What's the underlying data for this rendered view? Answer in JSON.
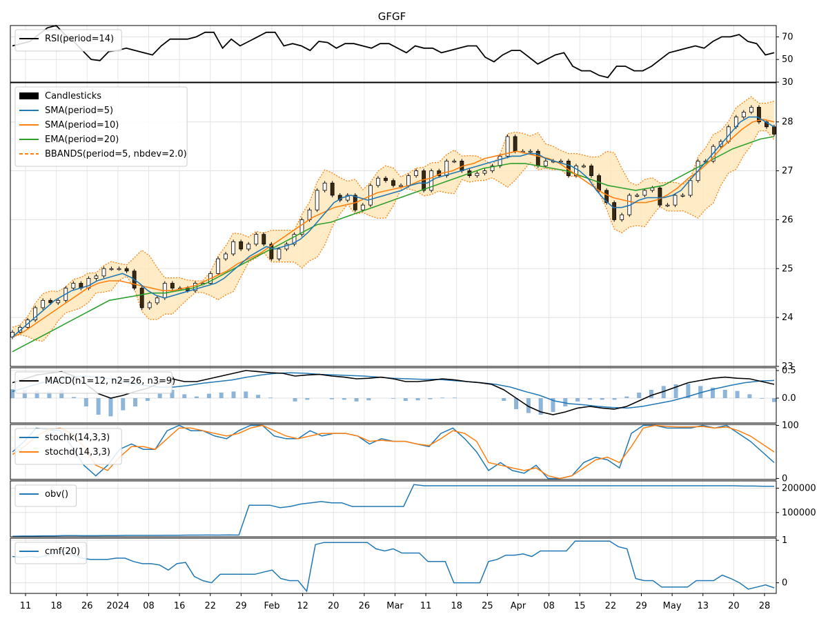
{
  "title": "GFGF",
  "x_ticks": [
    "11",
    "18",
    "26",
    "2024",
    "08",
    "16",
    "22",
    "29",
    "Feb",
    "12",
    "20",
    "26",
    "Mar",
    "11",
    "18",
    "25",
    "Apr",
    "08",
    "15",
    "22",
    "29",
    "May",
    "13",
    "20",
    "28"
  ],
  "panels": {
    "rsi": {
      "legend": [
        "RSI(period=14)"
      ],
      "y_ticks": [
        "30",
        "50",
        "70"
      ],
      "ylim": [
        30,
        80
      ]
    },
    "price": {
      "legend": [
        "Candlesticks",
        "SMA(period=5)",
        "SMA(period=10)",
        "EMA(period=20)",
        "BBANDS(period=5, nbdev=2.0)"
      ],
      "y_ticks": [
        "23",
        "24",
        "25",
        "26",
        "27",
        "28"
      ],
      "ylim": [
        23.0,
        28.8
      ]
    },
    "macd": {
      "legend": [
        "MACD(n1=12, n2=26, n3=9)"
      ],
      "y_ticks": [
        "0.0",
        "0.5"
      ],
      "ylim": [
        -0.45,
        0.55
      ]
    },
    "stoch": {
      "legend": [
        "stochk(14,3,3)",
        "stochd(14,3,3)"
      ],
      "y_ticks": [
        "0",
        "100"
      ],
      "ylim": [
        -2,
        102
      ]
    },
    "obv": {
      "legend": [
        "obv()"
      ],
      "y_ticks": [
        "100000",
        "200000"
      ],
      "ylim": [
        0,
        230000
      ]
    },
    "cmf": {
      "legend": [
        "cmf(20)"
      ],
      "y_ticks": [
        "0",
        "1"
      ],
      "ylim": [
        -0.25,
        1.05
      ]
    }
  },
  "colors": {
    "blue": "#1f77b4",
    "orange": "#ff7f0e",
    "green": "#2ca02c",
    "black": "#000000",
    "band": "#ffe7b8",
    "bull": "#2ca02c",
    "bear": "#d62728"
  },
  "chart_data": {
    "type": "line",
    "title": "GFGF",
    "x_range": [
      "2024-01-08",
      "2024-05-31"
    ],
    "trading_days": 101,
    "close": [
      23.7,
      23.8,
      23.95,
      24.2,
      24.35,
      24.3,
      24.35,
      24.6,
      24.7,
      24.6,
      24.8,
      24.85,
      25.0,
      25.0,
      25.0,
      24.95,
      24.6,
      24.2,
      24.3,
      24.4,
      24.7,
      24.6,
      24.6,
      24.55,
      24.7,
      24.7,
      24.9,
      25.2,
      25.3,
      25.55,
      25.4,
      25.5,
      25.7,
      25.5,
      25.2,
      25.4,
      25.5,
      25.7,
      26.0,
      26.2,
      26.6,
      26.75,
      26.5,
      26.4,
      26.5,
      26.2,
      26.3,
      26.7,
      26.85,
      26.8,
      26.7,
      26.7,
      26.9,
      27.0,
      26.6,
      27.0,
      26.9,
      27.2,
      27.2,
      27.0,
      26.9,
      26.95,
      27.0,
      27.1,
      27.3,
      27.7,
      27.4,
      27.4,
      27.4,
      27.1,
      27.2,
      27.2,
      27.2,
      26.9,
      27.1,
      27.1,
      26.9,
      26.6,
      26.35,
      26.0,
      26.1,
      26.5,
      26.5,
      26.6,
      26.65,
      26.3,
      26.3,
      26.5,
      26.5,
      26.8,
      27.2,
      27.2,
      27.5,
      27.6,
      27.9,
      28.1,
      28.2,
      28.3,
      28.0,
      27.9,
      27.75
    ],
    "rsi": [
      62,
      64,
      66,
      72,
      78,
      80,
      72,
      66,
      58,
      50,
      49,
      57,
      58,
      60,
      58,
      56,
      54,
      62,
      68,
      68,
      68,
      70,
      74,
      74,
      60,
      68,
      62,
      66,
      70,
      74,
      74,
      62,
      64,
      62,
      58,
      66,
      65,
      60,
      64,
      64,
      62,
      60,
      64,
      64,
      60,
      56,
      62,
      60,
      60,
      56,
      58,
      60,
      62,
      62,
      52,
      48,
      54,
      58,
      58,
      52,
      46,
      50,
      54,
      56,
      44,
      40,
      40,
      36,
      34,
      44,
      44,
      40,
      40,
      44,
      50,
      56,
      58,
      60,
      62,
      60,
      66,
      70,
      70,
      72,
      66,
      64,
      54,
      56
    ],
    "sma5": [
      23.6,
      23.75,
      23.9,
      24.05,
      24.2,
      24.35,
      24.45,
      24.55,
      24.6,
      24.65,
      24.75,
      24.8,
      24.85,
      24.9,
      24.82,
      24.7,
      24.55,
      24.45,
      24.4,
      24.45,
      24.5,
      24.55,
      24.6,
      24.65,
      24.7,
      24.8,
      24.95,
      25.1,
      25.25,
      25.35,
      25.45,
      25.4,
      25.45,
      25.5,
      25.6,
      25.75,
      25.95,
      26.15,
      26.35,
      26.45,
      26.5,
      26.45,
      26.4,
      26.45,
      26.5,
      26.55,
      26.6,
      26.7,
      26.75,
      26.75,
      26.85,
      26.9,
      26.95,
      27.0,
      27.05,
      27.1,
      27.15,
      27.2,
      27.25,
      27.3,
      27.3,
      27.35,
      27.35,
      27.25,
      27.2,
      27.15,
      27.1,
      27.0,
      26.85,
      26.6,
      26.4,
      26.25,
      26.25,
      26.3,
      26.4,
      26.45,
      26.45,
      26.45,
      26.5,
      26.6,
      26.8,
      27.0,
      27.2,
      27.4,
      27.6,
      27.8,
      28.0,
      28.1,
      28.1,
      28.0,
      27.9
    ],
    "sma10": [
      23.6,
      23.7,
      23.85,
      24.0,
      24.15,
      24.3,
      24.45,
      24.6,
      24.7,
      24.75,
      24.75,
      24.7,
      24.65,
      24.6,
      24.55,
      24.55,
      24.6,
      24.65,
      24.75,
      24.85,
      24.95,
      25.1,
      25.2,
      25.3,
      25.45,
      25.6,
      25.75,
      25.9,
      26.05,
      26.15,
      26.25,
      26.3,
      26.35,
      26.45,
      26.55,
      26.6,
      26.65,
      26.7,
      26.8,
      26.85,
      26.95,
      27.0,
      27.1,
      27.15,
      27.25,
      27.3,
      27.35,
      27.4,
      27.35,
      27.3,
      27.25,
      27.15,
      27.0,
      26.85,
      26.7,
      26.55,
      26.45,
      26.4,
      26.35,
      26.35,
      26.4,
      26.5,
      26.65,
      26.85,
      27.0,
      27.2,
      27.45,
      27.65,
      27.85,
      28.0,
      28.05,
      28.0
    ],
    "ema20": [
      23.3,
      23.45,
      23.6,
      23.75,
      23.9,
      24.05,
      24.2,
      24.35,
      24.4,
      24.45,
      24.5,
      24.5,
      24.55,
      24.6,
      24.7,
      24.85,
      25.0,
      25.15,
      25.3,
      25.45,
      25.6,
      25.75,
      25.9,
      25.95,
      26.05,
      26.15,
      26.25,
      26.35,
      26.45,
      26.55,
      26.65,
      26.75,
      26.85,
      26.95,
      27.05,
      27.1,
      27.15,
      27.15,
      27.1,
      27.05,
      27.0,
      26.9,
      26.8,
      26.7,
      26.65,
      26.6,
      26.65,
      26.7,
      26.85,
      27.0,
      27.15,
      27.3,
      27.45,
      27.55,
      27.65,
      27.7
    ],
    "macd": [
      0.28,
      0.35,
      0.42,
      0.45,
      0.48,
      0.4,
      0.25,
      0.08,
      0.0,
      0.05,
      0.12,
      0.18,
      0.28,
      0.35,
      0.3,
      0.3,
      0.35,
      0.4,
      0.45,
      0.5,
      0.48,
      0.46,
      0.45,
      0.4,
      0.42,
      0.43,
      0.4,
      0.38,
      0.35,
      0.36,
      0.38,
      0.35,
      0.3,
      0.3,
      0.32,
      0.35,
      0.33,
      0.3,
      0.28,
      0.25,
      0.15,
      0.0,
      -0.15,
      -0.25,
      -0.3,
      -0.25,
      -0.18,
      -0.15,
      -0.18,
      -0.2,
      -0.15,
      -0.05,
      0.05,
      0.12,
      0.2,
      0.28,
      0.32,
      0.36,
      0.38,
      0.36,
      0.35,
      0.3,
      0.25
    ],
    "macd_signal": [
      0.12,
      0.2,
      0.28,
      0.33,
      0.38,
      0.4,
      0.38,
      0.33,
      0.27,
      0.23,
      0.2,
      0.2,
      0.23,
      0.27,
      0.3,
      0.33,
      0.38,
      0.42,
      0.45,
      0.46,
      0.45,
      0.43,
      0.42,
      0.41,
      0.4,
      0.38,
      0.36,
      0.35,
      0.34,
      0.34,
      0.32,
      0.3,
      0.28,
      0.25,
      0.2,
      0.12,
      0.05,
      -0.05,
      -0.1,
      -0.12,
      -0.15,
      -0.17,
      -0.18,
      -0.15,
      -0.1,
      -0.05,
      0.02,
      0.1,
      0.17,
      0.23,
      0.28,
      0.31,
      0.32
    ],
    "stochk": [
      50,
      70,
      95,
      92,
      90,
      60,
      25,
      5,
      25,
      55,
      65,
      55,
      55,
      90,
      100,
      90,
      90,
      80,
      75,
      90,
      100,
      100,
      80,
      75,
      75,
      90,
      80,
      85,
      85,
      80,
      65,
      75,
      70,
      70,
      65,
      60,
      85,
      95,
      75,
      50,
      15,
      30,
      15,
      10,
      25,
      0,
      0,
      5,
      30,
      40,
      35,
      20,
      85,
      100,
      100,
      95,
      95,
      95,
      100,
      95,
      100,
      85,
      70,
      50,
      30
    ],
    "stochd": [
      45,
      60,
      80,
      92,
      95,
      85,
      60,
      25,
      15,
      40,
      60,
      60,
      55,
      75,
      95,
      95,
      90,
      85,
      80,
      85,
      95,
      100,
      90,
      80,
      75,
      80,
      85,
      85,
      85,
      80,
      70,
      72,
      70,
      70,
      65,
      62,
      75,
      90,
      85,
      70,
      30,
      25,
      20,
      15,
      20,
      5,
      0,
      5,
      20,
      35,
      40,
      30,
      60,
      95,
      100,
      98,
      97,
      97,
      98,
      95,
      97,
      90,
      80,
      65,
      50
    ],
    "obv": [
      2000,
      3000,
      3000,
      4000,
      4000,
      5000,
      5000,
      4500,
      4500,
      5000,
      5000,
      6000,
      6000,
      6000,
      6000,
      6500,
      6500,
      7000,
      7000,
      7500,
      7000,
      8000,
      7000,
      130000,
      130000,
      130000,
      120000,
      125000,
      135000,
      140000,
      145000,
      140000,
      140000,
      125000,
      125000,
      125000,
      125000,
      125000,
      125000,
      215000,
      210000,
      210000,
      210000,
      210000,
      210000,
      210000,
      210000,
      210000,
      210000,
      210000,
      210000,
      210000,
      210000,
      210000,
      210000,
      210000,
      210000,
      210000,
      210000,
      210000,
      210000,
      210000,
      210000,
      210000,
      210000,
      210000,
      210000,
      210000,
      210000,
      210000,
      210000,
      209000,
      209000,
      208000,
      208000
    ],
    "cmf": [
      0.62,
      0.6,
      0.62,
      0.6,
      0.65,
      0.72,
      0.75,
      0.65,
      0.58,
      0.55,
      0.55,
      0.55,
      0.58,
      0.58,
      0.5,
      0.45,
      0.45,
      0.42,
      0.3,
      0.45,
      0.48,
      0.15,
      0.05,
      0.0,
      0.2,
      0.2,
      0.2,
      0.2,
      0.2,
      0.25,
      0.3,
      0.1,
      0.05,
      0.05,
      -0.2,
      0.9,
      0.95,
      0.95,
      0.95,
      0.95,
      0.95,
      0.95,
      0.8,
      0.75,
      0.8,
      0.7,
      0.7,
      0.7,
      0.5,
      0.5,
      0.5,
      0.0,
      0.0,
      0.0,
      0.0,
      0.5,
      0.55,
      0.65,
      0.65,
      0.68,
      0.62,
      0.75,
      0.75,
      0.75,
      0.75,
      0.98,
      0.98,
      0.98,
      0.98,
      0.98,
      0.85,
      0.8,
      0.1,
      0.05,
      0.05,
      -0.1,
      -0.1,
      -0.1,
      -0.1,
      0.05,
      0.05,
      0.05,
      0.18,
      0.1,
      0.0,
      -0.15,
      -0.1,
      -0.05,
      -0.12
    ]
  }
}
